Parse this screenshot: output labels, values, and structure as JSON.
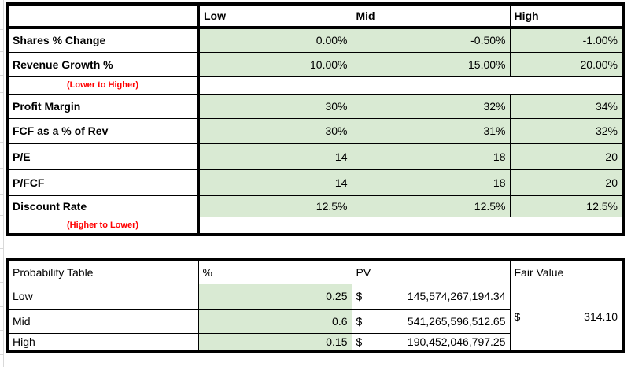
{
  "colors": {
    "cell_fill_green": "#d9ead3",
    "annotation_red": "#ff0000",
    "border_black": "#000000",
    "gridline_gray": "#d9d9d9"
  },
  "top_table": {
    "headers": [
      "",
      "Low",
      "Mid",
      "High"
    ],
    "rows": [
      {
        "label": "Shares % Change",
        "type": "data",
        "values": [
          "0.00%",
          "-0.50%",
          "-1.00%"
        ]
      },
      {
        "label": "Revenue Growth %",
        "type": "data",
        "values": [
          "10.00%",
          "15.00%",
          "20.00%"
        ]
      },
      {
        "label": "(Lower to Higher)",
        "type": "annotation",
        "values": [
          "",
          "",
          ""
        ]
      },
      {
        "label": "Profit Margin",
        "type": "data",
        "values": [
          "30%",
          "32%",
          "34%"
        ]
      },
      {
        "label": "FCF as a % of Rev",
        "type": "data",
        "values": [
          "30%",
          "31%",
          "32%"
        ]
      },
      {
        "label": "P/E",
        "type": "data",
        "values": [
          "14",
          "18",
          "20"
        ]
      },
      {
        "label": "P/FCF",
        "type": "data",
        "values": [
          "14",
          "18",
          "20"
        ]
      },
      {
        "label": "Discount Rate",
        "type": "data",
        "values": [
          "12.5%",
          "12.5%",
          "12.5%"
        ]
      },
      {
        "label": "(Higher to Lower)",
        "type": "annotation",
        "values": [
          "",
          "",
          ""
        ]
      }
    ]
  },
  "probability_table": {
    "headers": [
      "Probability Table",
      "%",
      "PV",
      "Fair Value"
    ],
    "rows": [
      {
        "label": "Low",
        "pct": "0.25",
        "pv_currency": "$",
        "pv": "145,574,267,194.34"
      },
      {
        "label": "Mid",
        "pct": "0.6",
        "pv_currency": "$",
        "pv": "541,265,596,512.65"
      },
      {
        "label": "High",
        "pct": "0.15",
        "pv_currency": "$",
        "pv": "190,452,046,797.25"
      }
    ],
    "fair_value": {
      "currency": "$",
      "value": "314.10"
    }
  }
}
